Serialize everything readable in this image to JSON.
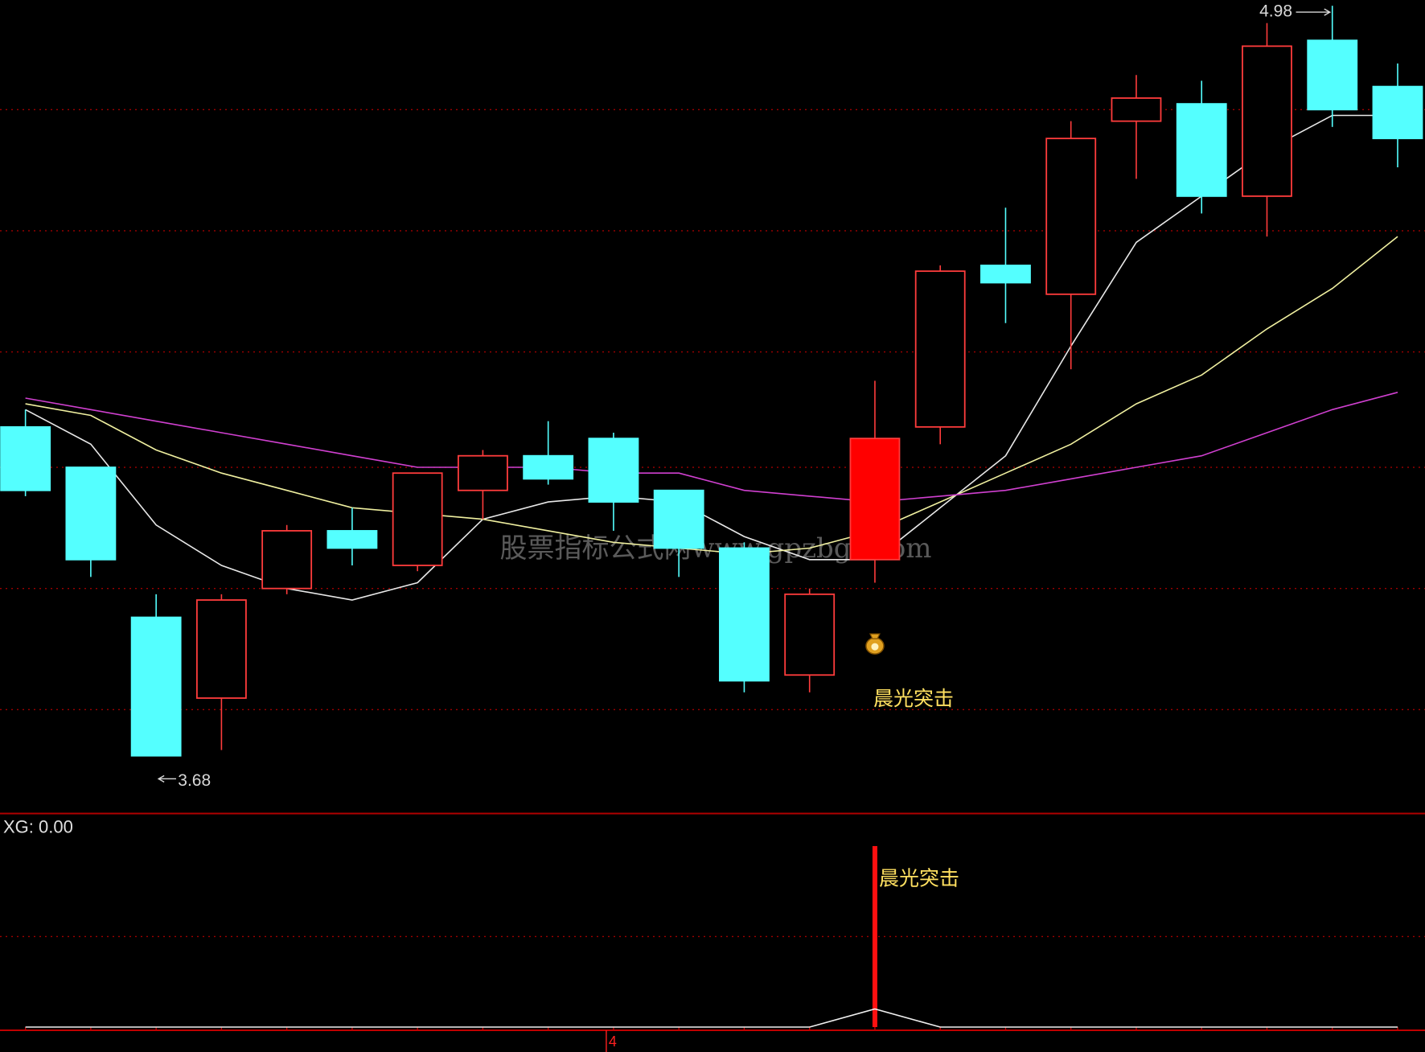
{
  "chart_data": [
    {
      "type": "candlestick",
      "open": [
        4.25,
        4.18,
        3.92,
        3.78,
        3.97,
        4.07,
        4.01,
        4.14,
        4.2,
        4.23,
        4.14,
        4.04,
        3.82,
        4.02,
        4.25,
        4.53,
        4.48,
        4.78,
        4.81,
        4.65,
        4.92,
        4.84
      ],
      "high": [
        4.28,
        4.18,
        3.96,
        3.96,
        4.08,
        4.11,
        4.17,
        4.21,
        4.26,
        4.24,
        4.14,
        4.05,
        3.97,
        4.33,
        4.53,
        4.63,
        4.78,
        4.86,
        4.85,
        4.95,
        4.98,
        4.88
      ],
      "low": [
        4.13,
        3.99,
        3.68,
        3.69,
        3.96,
        4.01,
        4.0,
        4.09,
        4.15,
        4.07,
        3.99,
        3.79,
        3.79,
        3.98,
        4.22,
        4.43,
        4.35,
        4.68,
        4.62,
        4.58,
        4.77,
        4.7
      ],
      "close": [
        4.14,
        4.02,
        3.68,
        3.95,
        4.07,
        4.04,
        4.17,
        4.2,
        4.16,
        4.12,
        4.04,
        3.81,
        3.96,
        4.23,
        4.52,
        4.5,
        4.75,
        4.82,
        4.65,
        4.91,
        4.8,
        4.75
      ],
      "up_color": "#ff3c3c",
      "down_color": "#54ffff",
      "ma_lines": [
        {
          "color": "#e8e8e8",
          "values": [
            4.28,
            4.22,
            4.08,
            4.01,
            3.97,
            3.95,
            3.98,
            4.09,
            4.12,
            4.13,
            4.12,
            4.06,
            4.02,
            4.02,
            4.11,
            4.2,
            4.39,
            4.57,
            4.65,
            4.73,
            4.79,
            4.79
          ]
        },
        {
          "color": "#f0f0a0",
          "values": [
            4.29,
            4.27,
            4.21,
            4.17,
            4.14,
            4.11,
            4.1,
            4.09,
            4.07,
            4.05,
            4.04,
            4.03,
            4.04,
            4.07,
            4.12,
            4.17,
            4.22,
            4.29,
            4.34,
            4.42,
            4.49,
            4.58
          ]
        },
        {
          "color": "#d040d0",
          "values": [
            4.3,
            4.28,
            4.26,
            4.24,
            4.22,
            4.2,
            4.18,
            4.18,
            4.18,
            4.17,
            4.17,
            4.14,
            4.13,
            4.12,
            4.13,
            4.14,
            4.16,
            4.18,
            4.2,
            4.24,
            4.28,
            4.31
          ]
        }
      ],
      "ylim": [
        3.58,
        4.99
      ],
      "yticks": [
        3.76,
        3.97,
        4.18,
        4.38,
        4.59,
        4.8
      ],
      "grid": true,
      "min_label": "3.68",
      "max_label": "4.98",
      "signal_text": "晨光突击",
      "watermark": "股票指标公式网www.gpzbgs.com"
    },
    {
      "type": "signal",
      "label": "XG: 0.00",
      "categories": [
        null,
        null,
        null,
        null,
        null,
        null,
        null,
        null,
        null,
        "4",
        null,
        null,
        null,
        null,
        null,
        null,
        null,
        null,
        null,
        null,
        null,
        null
      ],
      "series": [
        {
          "name": "XG",
          "color": "#ff1010",
          "values": [
            0,
            0,
            0,
            0,
            0,
            0,
            0,
            0,
            0,
            0,
            0,
            0,
            0,
            1,
            0,
            0,
            0,
            0,
            0,
            0,
            0,
            0
          ]
        },
        {
          "color": "#f0f0f0",
          "values": [
            0,
            0,
            0,
            0,
            0,
            0,
            0,
            0,
            0,
            0,
            0,
            0,
            0,
            0.1,
            0,
            0,
            0,
            0,
            0,
            0,
            0,
            0
          ]
        }
      ],
      "ylim": [
        0,
        1.18
      ],
      "yticks": [
        0.5
      ],
      "grid": true,
      "signal_text": "晨光突击"
    }
  ]
}
